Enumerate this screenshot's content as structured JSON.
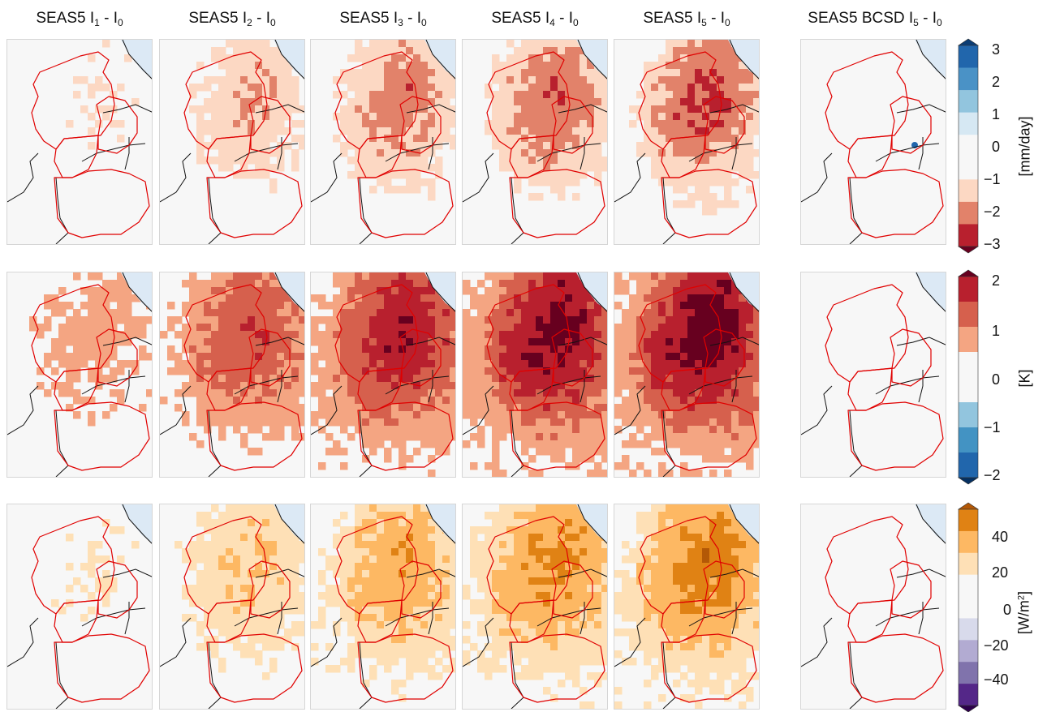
{
  "columns": [
    {
      "prefix": "SEAS5 I",
      "sub1": "1",
      "mid": " - I",
      "sub2": "0"
    },
    {
      "prefix": "SEAS5 I",
      "sub1": "2",
      "mid": " - I",
      "sub2": "0"
    },
    {
      "prefix": "SEAS5 I",
      "sub1": "3",
      "mid": " - I",
      "sub2": "0"
    },
    {
      "prefix": "SEAS5 I",
      "sub1": "4",
      "mid": " - I",
      "sub2": "0"
    },
    {
      "prefix": "SEAS5 I",
      "sub1": "5",
      "mid": " - I",
      "sub2": "0"
    },
    {
      "prefix": "SEAS5 BCSD I",
      "sub1": "5",
      "mid": " - I",
      "sub2": "0"
    }
  ],
  "rows": [
    {
      "id": "precip",
      "unit": "[mm/day]",
      "unit_sup": "",
      "unit_after": "",
      "colorbar": {
        "ticks": [
          "3",
          "2",
          "1",
          "0",
          "−1",
          "−2",
          "−3"
        ],
        "colors_top_to_bottom": [
          "#0b3d75",
          "#2166ac",
          "#4a92c6",
          "#92c5de",
          "#d6e8f3",
          "#f7f7f7",
          "#f7f7f7",
          "#fcd8c3",
          "#e2826a",
          "#b8202e",
          "#67001f"
        ]
      },
      "maps": [
        "precip-l1",
        "precip-l2",
        "precip-l3",
        "precip-l4",
        "precip-l5",
        "precip-bcsd"
      ]
    },
    {
      "id": "temp",
      "unit": "[K]",
      "unit_sup": "",
      "unit_after": "",
      "colorbar": {
        "ticks": [
          "2",
          "1",
          "0",
          "−1",
          "−2"
        ],
        "colors_top_to_bottom": [
          "#67001f",
          "#b8202e",
          "#d6604d",
          "#f4a582",
          "#f7f7f7",
          "#f7f7f7",
          "#92c5de",
          "#4393c3",
          "#2166ac",
          "#053061"
        ]
      },
      "maps": [
        "temp-l1",
        "temp-l2",
        "temp-l3",
        "temp-l4",
        "temp-l5",
        "temp-bcsd"
      ]
    },
    {
      "id": "rad",
      "unit": "[W/m",
      "unit_sup": "2",
      "unit_after": "]",
      "colorbar": {
        "ticks": [
          "40",
          "20",
          "0",
          "−20",
          "−40"
        ],
        "colors_top_to_bottom": [
          "#b35806",
          "#e08214",
          "#fdb863",
          "#fee0b6",
          "#f7f7f7",
          "#f7f7f7",
          "#d8daeb",
          "#b2abd2",
          "#8073ac",
          "#542788",
          "#2d004b"
        ]
      },
      "maps": [
        "rad-l1",
        "rad-l2",
        "rad-l3",
        "rad-l4",
        "rad-l5",
        "rad-bcsd"
      ]
    }
  ],
  "intensity": {
    "precip": [
      0.22,
      0.5,
      0.65,
      0.72,
      0.82,
      0
    ],
    "temp": [
      0.3,
      0.6,
      0.8,
      0.92,
      0.95,
      0
    ],
    "rad": [
      0.18,
      0.42,
      0.58,
      0.68,
      0.74,
      0
    ]
  },
  "colors": {
    "sea": "#dce9f5",
    "land": "#f7f7f7",
    "catchment": "#e00000",
    "border": "#111111"
  }
}
